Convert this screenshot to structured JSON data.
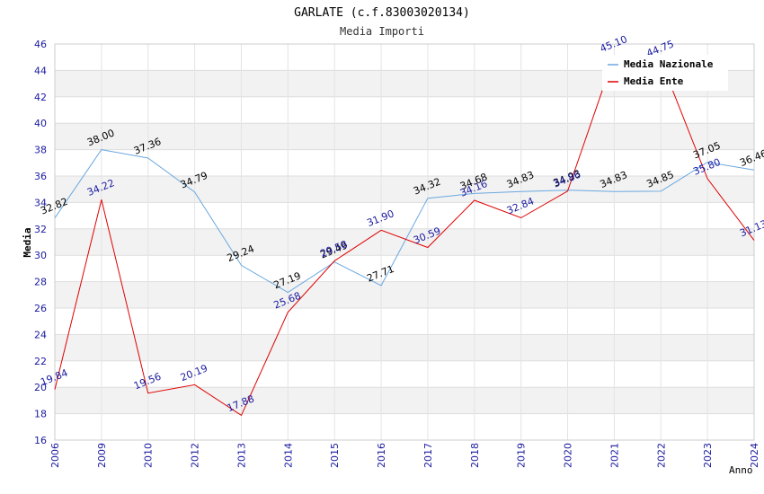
{
  "chart_data": {
    "type": "line",
    "title": "GARLATE (c.f.83003020134)",
    "subtitle": "Media Importi",
    "xlabel": "Anno",
    "ylabel": "Media",
    "ylim": [
      16,
      46
    ],
    "yticks": [
      "16",
      "18",
      "20",
      "22",
      "24",
      "26",
      "28",
      "30",
      "32",
      "34",
      "36",
      "38",
      "40",
      "42",
      "44",
      "46"
    ],
    "categories": [
      "2006",
      "2009",
      "2010",
      "2012",
      "2013",
      "2014",
      "2015",
      "2016",
      "2017",
      "2018",
      "2019",
      "2020",
      "2021",
      "2022",
      "2023",
      "2024"
    ],
    "legend_position": "top-right",
    "series": [
      {
        "name": "Media Nazionale",
        "color": "#6aa8e0",
        "label_color": "#000000",
        "values": [
          32.82,
          38.0,
          37.36,
          34.79,
          29.24,
          27.19,
          29.49,
          27.71,
          34.32,
          34.68,
          34.83,
          34.93,
          34.83,
          34.85,
          37.05,
          36.46
        ],
        "labels": [
          "32.82",
          "38.00",
          "37.36",
          "34.79",
          "29.24",
          "27.19",
          "29.49",
          "27.71",
          "34.32",
          "34.68",
          "34.83",
          "34.93",
          "34.83",
          "34.85",
          "37.05",
          "36.46"
        ]
      },
      {
        "name": "Media Ente",
        "color": "#e00000",
        "label_color": "#1a1aa0",
        "values": [
          19.84,
          34.22,
          19.56,
          20.19,
          17.88,
          25.68,
          29.58,
          31.9,
          30.59,
          34.16,
          32.84,
          34.86,
          45.1,
          44.75,
          35.8,
          31.13
        ],
        "labels": [
          "19.84",
          "34.22",
          "19.56",
          "20.19",
          "17.88",
          "25.68",
          "29.58",
          "31.90",
          "30.59",
          "34.16",
          "32.84",
          "34.86",
          "45.10",
          "44.75",
          "35.80",
          "31.13"
        ]
      }
    ]
  }
}
